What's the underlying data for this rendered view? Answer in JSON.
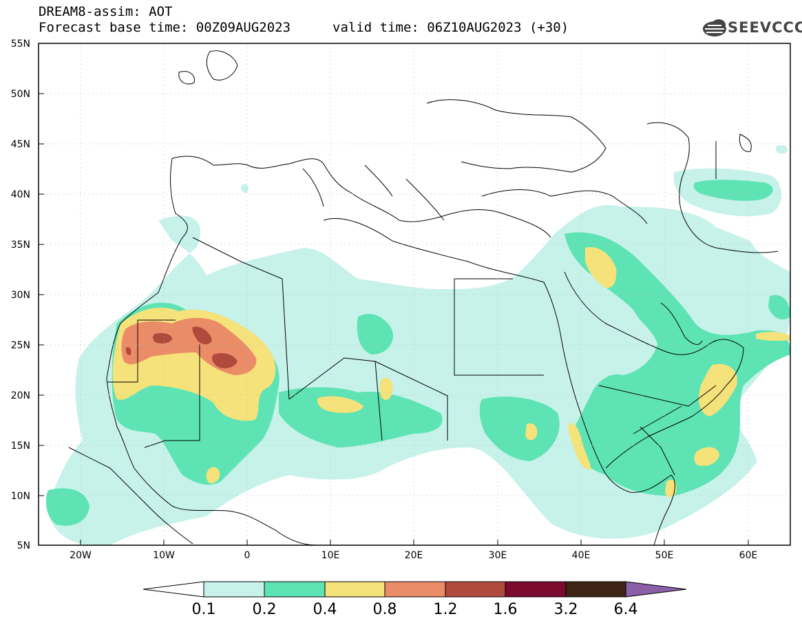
{
  "header": {
    "model_line": "DREAM8-assim: AOT",
    "base_time": "Forecast base time: 00Z09AUG2023",
    "valid_time": "valid time: 06Z10AUG2023 (+30)",
    "logo_text": "SEEVCCC",
    "logo_icon": "cloud-logo-icon"
  },
  "map": {
    "lat_labels": [
      "55N",
      "50N",
      "45N",
      "40N",
      "35N",
      "30N",
      "25N",
      "20N",
      "15N",
      "10N",
      "5N"
    ],
    "lon_labels": [
      "20W",
      "10W",
      "0",
      "10E",
      "20E",
      "30E",
      "40E",
      "50E",
      "60E"
    ],
    "lat_values": [
      55,
      50,
      45,
      40,
      35,
      30,
      25,
      20,
      15,
      10,
      5
    ],
    "lon_values": [
      -20,
      -10,
      0,
      10,
      20,
      30,
      40,
      50,
      60
    ],
    "lon_range": [
      -25,
      65
    ],
    "lat_range": [
      5,
      55
    ]
  },
  "colorbar": {
    "labels": [
      "0.1",
      "0.2",
      "0.4",
      "0.8",
      "1.2",
      "1.6",
      "3.2",
      "6.4"
    ],
    "colors": [
      "#ffffff",
      "#c6f2ea",
      "#5ee3b4",
      "#f6e27a",
      "#eb8c68",
      "#b04a3c",
      "#7a0a2e",
      "#3d2415",
      "#8a5fa8"
    ]
  }
}
